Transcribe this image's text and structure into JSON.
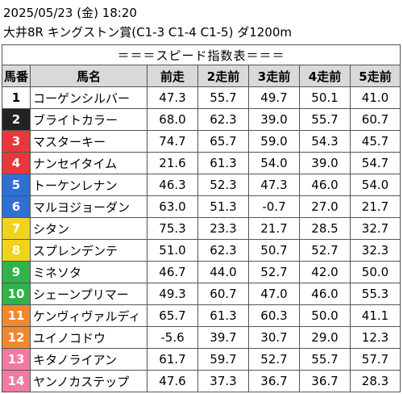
{
  "header": {
    "line1": "2025/05/23 (金) 18:20",
    "line2": "大井8R キングストン賞(C1-3 C1-4 C1-5) ダ1200m"
  },
  "banner": "＝＝＝スピード指数表＝＝＝",
  "columns": [
    "馬番",
    "馬名",
    "前走",
    "2走前",
    "3走前",
    "4走前",
    "5走前"
  ],
  "rows": [
    {
      "num": "1",
      "name": "コーゲンシルバー",
      "v": [
        "47.3",
        "55.7",
        "49.7",
        "50.1",
        "41.0"
      ],
      "bg": "#ffffff",
      "fg": "#000000"
    },
    {
      "num": "2",
      "name": "ブライトカラー",
      "v": [
        "68.0",
        "62.3",
        "39.0",
        "55.7",
        "60.7"
      ],
      "bg": "#222222",
      "fg": "#ffffff"
    },
    {
      "num": "3",
      "name": "マスターキー",
      "v": [
        "74.7",
        "65.7",
        "59.0",
        "54.3",
        "45.7"
      ],
      "bg": "#e8383d",
      "fg": "#ffffff"
    },
    {
      "num": "4",
      "name": "ナンセイタイム",
      "v": [
        "21.6",
        "61.3",
        "54.0",
        "39.0",
        "54.7"
      ],
      "bg": "#e8383d",
      "fg": "#ffffff"
    },
    {
      "num": "5",
      "name": "トーケンレナン",
      "v": [
        "46.3",
        "52.3",
        "47.3",
        "46.0",
        "54.0"
      ],
      "bg": "#2f6fd6",
      "fg": "#ffffff"
    },
    {
      "num": "6",
      "name": "マルヨジョーダン",
      "v": [
        "63.0",
        "51.3",
        "-0.7",
        "27.0",
        "21.7"
      ],
      "bg": "#2f6fd6",
      "fg": "#ffffff"
    },
    {
      "num": "7",
      "name": "シタン",
      "v": [
        "75.3",
        "23.3",
        "21.7",
        "28.5",
        "32.7"
      ],
      "bg": "#f2d31b",
      "fg": "#ffffff"
    },
    {
      "num": "8",
      "name": "スプレンデンテ",
      "v": [
        "51.0",
        "62.3",
        "50.7",
        "52.7",
        "32.3"
      ],
      "bg": "#f2d31b",
      "fg": "#ffffff"
    },
    {
      "num": "9",
      "name": "ミネソタ",
      "v": [
        "46.7",
        "44.0",
        "52.7",
        "42.0",
        "50.0"
      ],
      "bg": "#2fb34a",
      "fg": "#ffffff"
    },
    {
      "num": "10",
      "name": "シェーンプリマー",
      "v": [
        "49.3",
        "60.7",
        "47.0",
        "46.0",
        "55.3"
      ],
      "bg": "#2fb34a",
      "fg": "#ffffff"
    },
    {
      "num": "11",
      "name": "ケンヴィヴァルディ",
      "v": [
        "65.7",
        "61.3",
        "60.3",
        "50.0",
        "41.1"
      ],
      "bg": "#f0892b",
      "fg": "#ffffff"
    },
    {
      "num": "12",
      "name": "ユイノコドウ",
      "v": [
        "-5.6",
        "39.7",
        "30.7",
        "29.0",
        "12.3"
      ],
      "bg": "#f0892b",
      "fg": "#ffffff"
    },
    {
      "num": "13",
      "name": "キタノライアン",
      "v": [
        "61.7",
        "59.7",
        "52.7",
        "55.7",
        "57.7"
      ],
      "bg": "#f27aa0",
      "fg": "#ffffff"
    },
    {
      "num": "14",
      "name": "ヤンノカステップ",
      "v": [
        "47.6",
        "37.3",
        "36.7",
        "36.7",
        "28.3"
      ],
      "bg": "#f27aa0",
      "fg": "#ffffff"
    }
  ]
}
